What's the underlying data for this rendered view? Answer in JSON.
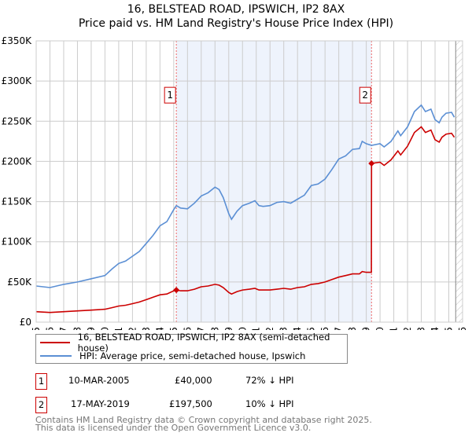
{
  "chart_data": {
    "type": "line",
    "title": "16, BELSTEAD ROAD, IPSWICH, IP2 8AX",
    "subtitle": "Price paid vs. HM Land Registry's House Price Index (HPI)",
    "xlabel": "",
    "ylabel": "",
    "xlim": [
      1995,
      2026
    ],
    "ylim": [
      0,
      350000
    ],
    "yticks": [
      0,
      50000,
      100000,
      150000,
      200000,
      250000,
      300000,
      350000
    ],
    "ytick_labels": [
      "£0",
      "£50K",
      "£100K",
      "£150K",
      "£200K",
      "£250K",
      "£300K",
      "£350K"
    ],
    "xticks": [
      1995,
      1996,
      1997,
      1998,
      1999,
      2000,
      2001,
      2002,
      2003,
      2004,
      2005,
      2006,
      2007,
      2008,
      2009,
      2010,
      2011,
      2012,
      2013,
      2014,
      2015,
      2016,
      2017,
      2018,
      2019,
      2020,
      2021,
      2022,
      2023,
      2024,
      2025,
      2026
    ],
    "grid": true,
    "shaded_range": [
      2005.19,
      2019.38
    ],
    "hatched_from": 2025.5,
    "series": [
      {
        "name": "16, BELSTEAD ROAD, IPSWICH, IP2 8AX (semi-detached house)",
        "color": "#cc0000",
        "x": [
          1995,
          1996,
          1997,
          1998,
          1999,
          2000,
          2000.5,
          2001,
          2001.5,
          2002,
          2002.5,
          2003,
          2003.5,
          2004,
          2004.5,
          2005,
          2005.19,
          2005.5,
          2006,
          2006.5,
          2007,
          2007.5,
          2008,
          2008.3,
          2008.6,
          2009,
          2009.2,
          2009.6,
          2010,
          2010.5,
          2010.9,
          2011.2,
          2011.5,
          2012,
          2012.5,
          2013,
          2013.5,
          2014,
          2014.5,
          2015,
          2015.5,
          2016,
          2016.5,
          2017,
          2017.5,
          2018,
          2018.5,
          2018.7,
          2019,
          2019.37,
          2019.38,
          2020,
          2020.3,
          2020.8,
          2021.3,
          2021.5,
          2022,
          2022.5,
          2023,
          2023.3,
          2023.7,
          2024,
          2024.3,
          2024.5,
          2024.8,
          2025.2,
          2025.4
        ],
        "y": [
          13000,
          12000,
          13000,
          14000,
          15000,
          16000,
          18000,
          20000,
          21000,
          23000,
          25000,
          28000,
          31000,
          34000,
          35000,
          39000,
          40000,
          39000,
          39000,
          41000,
          44000,
          45000,
          47000,
          46000,
          43000,
          37000,
          35000,
          38000,
          40000,
          41000,
          42000,
          40000,
          40000,
          40000,
          41000,
          42000,
          41000,
          43000,
          44000,
          47000,
          48000,
          50000,
          53000,
          56000,
          58000,
          60000,
          60000,
          63000,
          62000,
          62000,
          197500,
          199000,
          195000,
          202000,
          213000,
          208000,
          219000,
          236000,
          243000,
          236000,
          239000,
          227000,
          224000,
          230000,
          234000,
          235000,
          230000
        ]
      },
      {
        "name": "HPI: Average price, semi-detached house, Ipswich",
        "color": "#5b8fd4",
        "x": [
          1995,
          1996,
          1997,
          1998,
          1999,
          2000,
          2000.5,
          2001,
          2001.5,
          2002,
          2002.5,
          2003,
          2003.5,
          2004,
          2004.5,
          2005,
          2005.19,
          2005.5,
          2006,
          2006.5,
          2007,
          2007.5,
          2008,
          2008.3,
          2008.6,
          2009,
          2009.2,
          2009.6,
          2010,
          2010.5,
          2010.9,
          2011.2,
          2011.5,
          2012,
          2012.5,
          2013,
          2013.5,
          2014,
          2014.5,
          2015,
          2015.5,
          2016,
          2016.5,
          2017,
          2017.5,
          2018,
          2018.5,
          2018.7,
          2019,
          2019.38,
          2020,
          2020.3,
          2020.8,
          2021.3,
          2021.5,
          2022,
          2022.5,
          2023,
          2023.3,
          2023.7,
          2024,
          2024.3,
          2024.5,
          2024.8,
          2025.2,
          2025.4
        ],
        "y": [
          45000,
          43000,
          47000,
          50000,
          54000,
          58000,
          66000,
          73000,
          76000,
          82000,
          88000,
          98000,
          108000,
          120000,
          125000,
          140000,
          145000,
          142000,
          141000,
          148000,
          157000,
          161000,
          168000,
          165000,
          155000,
          135000,
          128000,
          138000,
          145000,
          148000,
          151000,
          145000,
          144000,
          145000,
          149000,
          150000,
          148000,
          153000,
          158000,
          170000,
          172000,
          178000,
          190000,
          203000,
          207000,
          215000,
          216000,
          225000,
          222000,
          220000,
          222000,
          218000,
          225000,
          238000,
          232000,
          243000,
          262000,
          270000,
          262000,
          265000,
          252000,
          248000,
          255000,
          260000,
          261000,
          255000
        ]
      }
    ],
    "annotations": [
      {
        "label": "1",
        "x": 2005.19,
        "y": 40000
      },
      {
        "label": "2",
        "x": 2019.38,
        "y": 197500
      }
    ]
  },
  "legend": {
    "property": "16, BELSTEAD ROAD, IPSWICH, IP2 8AX (semi-detached house)",
    "hpi": "HPI: Average price, semi-detached house, Ipswich"
  },
  "transactions": [
    {
      "num": "1",
      "date": "10-MAR-2005",
      "price": "£40,000",
      "hpi": "72% ↓ HPI"
    },
    {
      "num": "2",
      "date": "17-MAY-2019",
      "price": "£197,500",
      "hpi": "10% ↓ HPI"
    }
  ],
  "footer": {
    "line1": "Contains HM Land Registry data © Crown copyright and database right 2025.",
    "line2": "This data is licensed under the Open Government Licence v3.0."
  }
}
